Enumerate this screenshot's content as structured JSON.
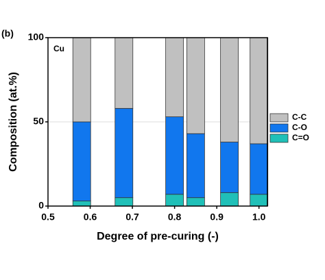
{
  "chart_data": {
    "type": "stacked_bar",
    "panel_label": "(b)",
    "annotation": "Cu",
    "x_label": "Degree of pre-curing (-)",
    "y_label": "Composition (at.%)",
    "x": [
      0.58,
      0.68,
      0.8,
      0.85,
      0.93,
      1.0
    ],
    "series": [
      {
        "name": "C=O",
        "color": "#20c0b8",
        "values": [
          3,
          5,
          7,
          5,
          8,
          7
        ]
      },
      {
        "name": "C-O",
        "color": "#1177ee",
        "values": [
          47,
          53,
          46,
          38,
          30,
          30
        ]
      },
      {
        "name": "C-C",
        "color": "#c0c0c0",
        "values": [
          50,
          42,
          47,
          57,
          62,
          63
        ]
      }
    ],
    "xlim": [
      0.5,
      1.02
    ],
    "xticks": [
      0.5,
      0.6,
      0.7,
      0.8,
      0.9,
      {
        "value": 1.0,
        "label": "1.0"
      }
    ],
    "ylim": [
      0,
      100
    ],
    "yticks": [
      0,
      50,
      100
    ],
    "grid": true
  }
}
